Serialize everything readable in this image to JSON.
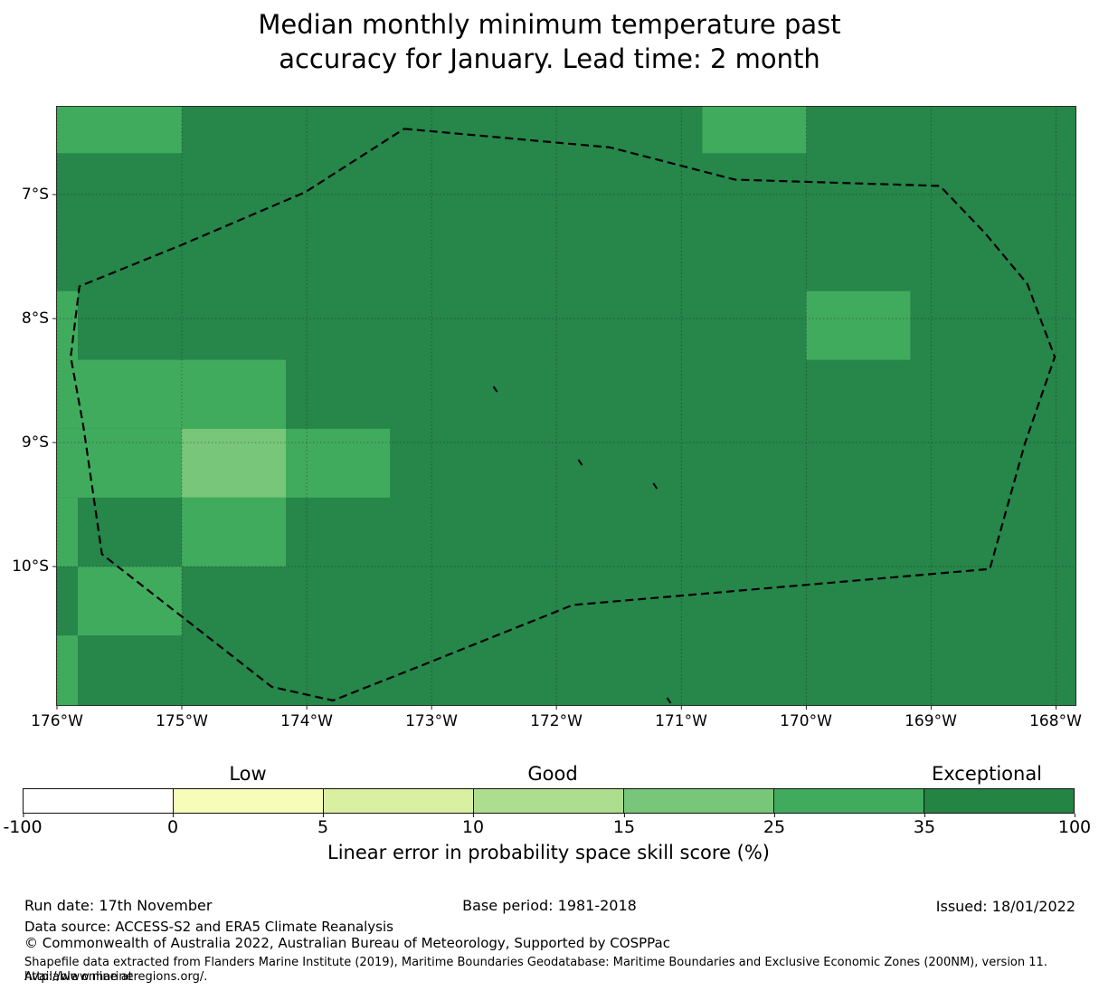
{
  "title": {
    "line1": "Median monthly minimum temperature past",
    "line2": "accuracy for January. Lead time: 2 month"
  },
  "chart_data": {
    "type": "heatmap",
    "title": "Median monthly minimum temperature past accuracy for January. Lead time: 2 month",
    "map_bounds": {
      "lon_min": -176.007,
      "lon_max": -167.837,
      "lat_min": 6.285,
      "lat_max": 11.124
    },
    "x_axis": {
      "ticks": [
        {
          "lon": -176,
          "label": "176°W"
        },
        {
          "lon": -175,
          "label": "175°W"
        },
        {
          "lon": -174,
          "label": "174°W"
        },
        {
          "lon": -173,
          "label": "173°W"
        },
        {
          "lon": -172,
          "label": "172°W"
        },
        {
          "lon": -171,
          "label": "171°W"
        },
        {
          "lon": -170,
          "label": "170°W"
        },
        {
          "lon": -169,
          "label": "169°W"
        },
        {
          "lon": -168,
          "label": "168°W"
        }
      ]
    },
    "y_axis": {
      "ticks": [
        {
          "lat": 7,
          "label": "7°S"
        },
        {
          "lat": 8,
          "label": "8°S"
        },
        {
          "lat": 9,
          "label": "9°S"
        },
        {
          "lat": 10,
          "label": "10°S"
        }
      ]
    },
    "cells": {
      "cell_size_deg": {
        "lon": 0.8333,
        "lat": 0.5556
      },
      "background_level": "35-100",
      "level_colors": {
        "15-25": "#78c679",
        "25-35": "#41ab5d",
        "35-100": "#27864a"
      },
      "patches": [
        {
          "lon0": -176.007,
          "lon1": -175.0,
          "lat0": 6.285,
          "lat1": 6.667,
          "level": "25-35"
        },
        {
          "lon0": -170.833,
          "lon1": -170.0,
          "lat0": 6.285,
          "lat1": 6.667,
          "level": "25-35"
        },
        {
          "lon0": -176.007,
          "lon1": -175.833,
          "lat0": 7.778,
          "lat1": 8.333,
          "level": "25-35"
        },
        {
          "lon0": -170.0,
          "lon1": -169.167,
          "lat0": 7.778,
          "lat1": 8.333,
          "level": "25-35"
        },
        {
          "lon0": -176.007,
          "lon1": -174.167,
          "lat0": 8.333,
          "lat1": 8.889,
          "level": "25-35"
        },
        {
          "lon0": -176.007,
          "lon1": -175.0,
          "lat0": 8.889,
          "lat1": 9.444,
          "level": "25-35"
        },
        {
          "lon0": -175.0,
          "lon1": -174.167,
          "lat0": 8.889,
          "lat1": 9.444,
          "level": "15-25"
        },
        {
          "lon0": -174.167,
          "lon1": -173.333,
          "lat0": 8.889,
          "lat1": 9.444,
          "level": "25-35"
        },
        {
          "lon0": -176.007,
          "lon1": -175.833,
          "lat0": 9.444,
          "lat1": 10.0,
          "level": "25-35"
        },
        {
          "lon0": -175.0,
          "lon1": -174.167,
          "lat0": 9.444,
          "lat1": 10.0,
          "level": "25-35"
        },
        {
          "lon0": -175.833,
          "lon1": -175.0,
          "lat0": 10.0,
          "lat1": 10.556,
          "level": "25-35"
        },
        {
          "lon0": -176.007,
          "lon1": -175.833,
          "lat0": 10.556,
          "lat1": 11.124,
          "level": "25-35"
        }
      ]
    },
    "eez_boundary": {
      "style": "dashed",
      "points": [
        [
          -173.22,
          6.47
        ],
        [
          -171.57,
          6.62
        ],
        [
          -170.57,
          6.88
        ],
        [
          -168.93,
          6.93
        ],
        [
          -168.57,
          7.31
        ],
        [
          -168.23,
          7.72
        ],
        [
          -168.01,
          8.31
        ],
        [
          -168.25,
          9.01
        ],
        [
          -168.53,
          10.02
        ],
        [
          -171.87,
          10.31
        ],
        [
          -173.16,
          10.83
        ],
        [
          -173.79,
          11.08
        ],
        [
          -174.28,
          10.97
        ],
        [
          -175.64,
          9.9
        ],
        [
          -175.79,
          8.86
        ],
        [
          -175.89,
          8.31
        ],
        [
          -175.82,
          7.74
        ],
        [
          -175.01,
          7.41
        ],
        [
          -174.01,
          6.98
        ]
      ]
    },
    "island_marks": [
      {
        "lon": -172.49,
        "lat": 8.57
      },
      {
        "lon": -171.81,
        "lat": 9.16
      },
      {
        "lon": -171.21,
        "lat": 9.35
      },
      {
        "lon": -171.1,
        "lat": 11.08
      }
    ],
    "colorbar": {
      "boundaries": [
        -100,
        0,
        5,
        10,
        15,
        25,
        35,
        100
      ],
      "tick_labels": [
        "-100",
        "0",
        "5",
        "10",
        "15",
        "25",
        "35",
        "100"
      ],
      "segment_colors": [
        "#ffffff",
        "#f7fcb9",
        "#d9f0a3",
        "#addd8e",
        "#78c679",
        "#41ab5d",
        "#238443"
      ],
      "category_labels": [
        "Low",
        "Good",
        "Exceptional"
      ],
      "label": "Linear error in probability space skill score (%)"
    }
  },
  "footer": {
    "run_date": "Run date: 17th November",
    "base_period": "Base period: 1981-2018",
    "issued": "Issued: 18/01/2022",
    "data_source": "Data source: ACCESS-S2 and ERA5 Climate Reanalysis",
    "copyright": "© Commonwealth of Australia 2022, Australian Bureau of Meteorology, Supported by COSPPac",
    "shapefile_note_line1": "Shapefile data extracted from Flanders Marine Institute (2019), Maritime Boundaries Geodatabase: Maritime Boundaries and Exclusive Economic Zones (200NM), version 11. Available online at",
    "shapefile_note_line2": "http://www.marineregions.org/."
  }
}
